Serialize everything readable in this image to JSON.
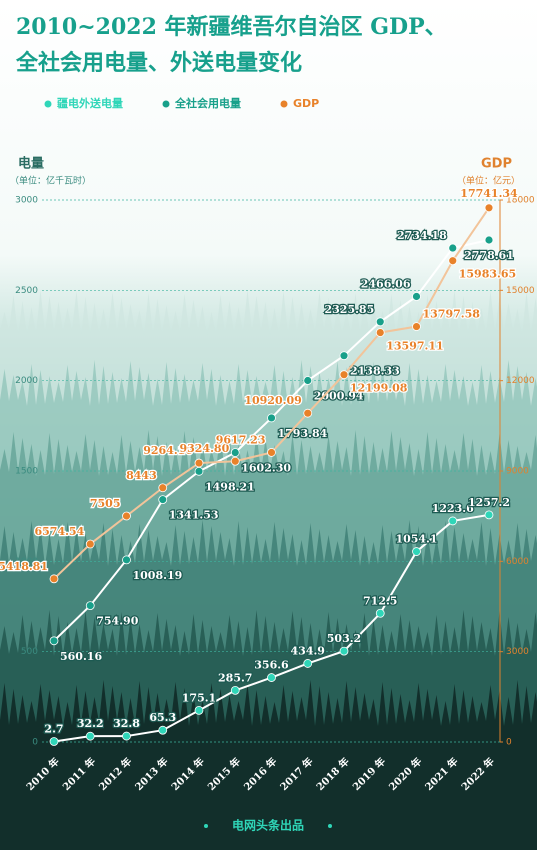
{
  "chart_data": {
    "type": "line",
    "title": [
      "2010~2022 年新疆维吾尔自治区 GDP、",
      "全社会用电量、外送电量变化"
    ],
    "y_label": "电量",
    "y_unit": "（单位：亿千瓦时）",
    "y2_label": "GDP",
    "y2_unit": "（单位：亿元）",
    "footer": "电网头条出品",
    "legend": "top-left",
    "categories": [
      "2010 年",
      "2011 年",
      "2012 年",
      "2013 年",
      "2014 年",
      "2015 年",
      "2016 年",
      "2017 年",
      "2018 年",
      "2019 年",
      "2020 年",
      "2021 年",
      "2022 年"
    ],
    "ylim": [
      0,
      3000
    ],
    "yticks": [
      0,
      500,
      1000,
      1500,
      2000,
      2500,
      3000
    ],
    "y2lim": [
      0,
      18000
    ],
    "y2ticks": [
      0,
      3000,
      6000,
      9000,
      12000,
      15000,
      18000
    ],
    "grid": true,
    "series": [
      {
        "name": "疆电外送电量",
        "color": "#2fd6b8",
        "values": [
          2.7,
          32.2,
          32.8,
          65.3,
          175.1,
          285.7,
          356.6,
          434.9,
          503.2,
          712.5,
          1054.1,
          1223.6,
          1257.2
        ]
      },
      {
        "name": "全社会用电量",
        "color": "#18a08a",
        "values": [
          560.16,
          754.9,
          1008.19,
          1341.53,
          1498.21,
          1602.3,
          1793.84,
          2000.94,
          2138.33,
          2325.85,
          2466.06,
          2734.18,
          2778.61
        ],
        "value_labels": [
          "560.16",
          "754.90",
          "1008.19",
          "1341.53",
          "1498.21",
          "1602.30",
          "1793.84",
          "2000.94",
          "2138.33",
          "2325.85",
          "2466.06",
          "2734.18",
          "2778.61"
        ]
      },
      {
        "name": "GDP",
        "color": "#e8822a",
        "axis": "y2",
        "values": [
          5418.81,
          6574.54,
          7505,
          8443,
          9264.1,
          9324.8,
          9617.23,
          10920.09,
          12199.08,
          13597.11,
          13797.58,
          15983.65,
          17741.34
        ],
        "value_labels": [
          "5418.81",
          "6574.54",
          "7505",
          "8443",
          "9264.10",
          "9324.80",
          "9617.23",
          "10920.09",
          "12199.08",
          "13597.11",
          "13797.58",
          "15983.65",
          "17741.34"
        ]
      }
    ]
  }
}
